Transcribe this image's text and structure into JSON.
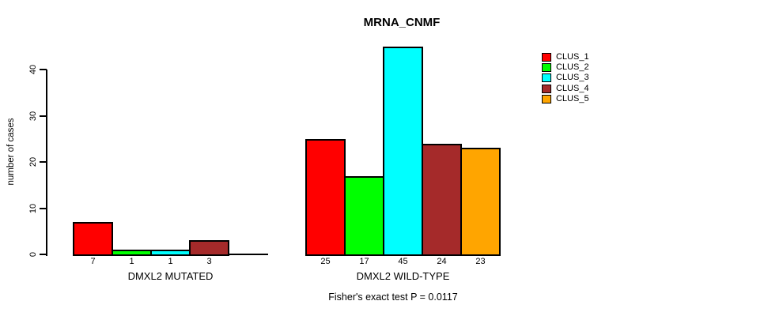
{
  "chart_data": {
    "type": "bar",
    "title": "MRNA_CNMF",
    "subtitle": "Fisher's exact test P = 0.0117",
    "ylabel": "number of cases",
    "xlabel": "",
    "ylim": [
      0,
      45.5
    ],
    "yticks": [
      0,
      10,
      20,
      30,
      40
    ],
    "grid": false,
    "legend_position": "top-right",
    "categories": [
      "DMXL2 MUTATED",
      "DMXL2 WILD-TYPE"
    ],
    "series": [
      {
        "name": "CLUS_1",
        "color": "#FF0000",
        "values": [
          7,
          25
        ]
      },
      {
        "name": "CLUS_2",
        "color": "#00FF00",
        "values": [
          1,
          17
        ]
      },
      {
        "name": "CLUS_3",
        "color": "#00FFFF",
        "values": [
          1,
          45
        ]
      },
      {
        "name": "CLUS_4",
        "color": "#A52A2A",
        "values": [
          3,
          24
        ]
      },
      {
        "name": "CLUS_5",
        "color": "#FFA500",
        "values": [
          0,
          23
        ]
      }
    ],
    "bar_value_labels": [
      [
        "7",
        "1",
        "1",
        "3",
        ""
      ],
      [
        "25",
        "17",
        "45",
        "24",
        "23"
      ]
    ],
    "colors": {
      "axis": "#000000",
      "text": "#000000",
      "background": "#FFFFFF"
    }
  }
}
